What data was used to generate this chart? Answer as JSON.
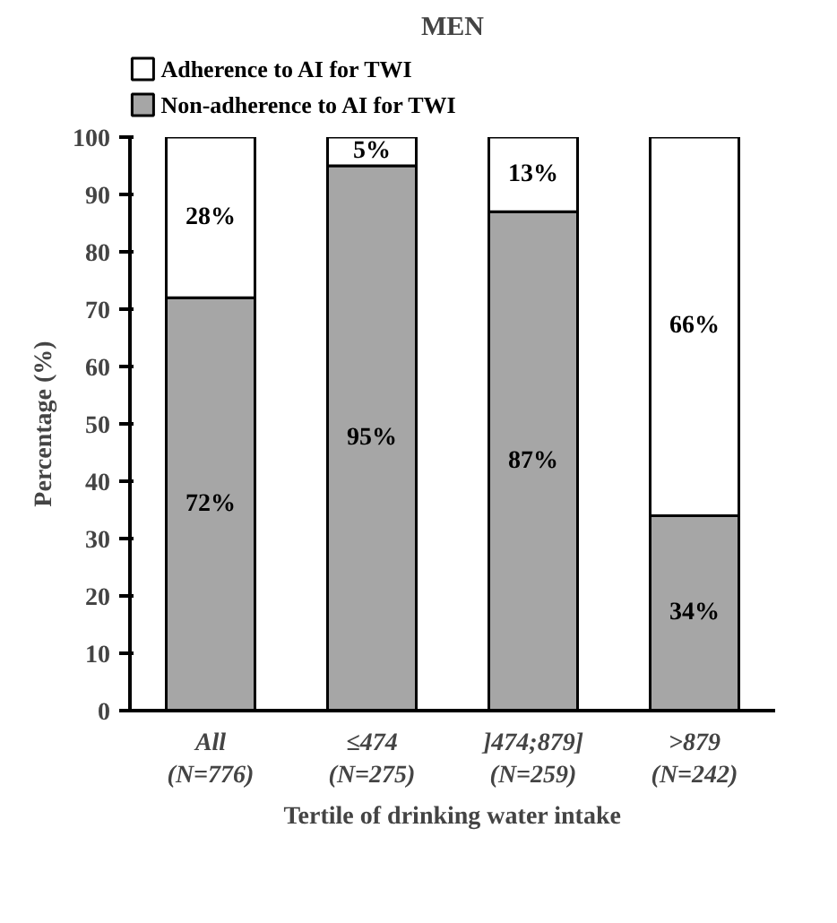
{
  "chart_data": {
    "type": "bar",
    "title": "MEN",
    "xlabel": "Tertile of drinking water intake",
    "ylabel": "Percentage (%)",
    "categories": [
      "All\n(N=776)",
      "≤474\n(N=275)",
      "]474;879]\n(N=259)",
      ">879\n(N=242)"
    ],
    "stacked": true,
    "ylim": [
      0,
      100
    ],
    "yticks": [
      0,
      10,
      20,
      30,
      40,
      50,
      60,
      70,
      80,
      90,
      100
    ],
    "grid": false,
    "legend": "top left",
    "series": [
      {
        "name": "Non-adherence to AI for TWI",
        "color": "#a6a6a6",
        "values": [
          72,
          95,
          87,
          34
        ],
        "value_labels": [
          "72%",
          "95%",
          "87%",
          "34%"
        ]
      },
      {
        "name": "Adherence to AI for TWI",
        "color": "#ffffff",
        "values": [
          28,
          5,
          13,
          66
        ],
        "value_labels": [
          "28%",
          "5%",
          "13%",
          "66%"
        ]
      }
    ]
  }
}
